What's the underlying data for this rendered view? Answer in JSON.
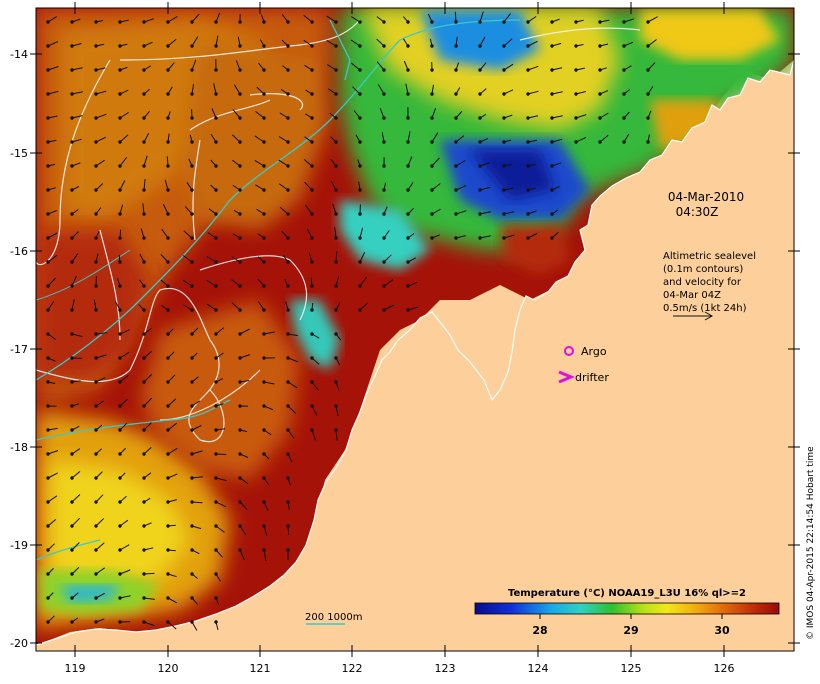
{
  "map": {
    "date_line": "04-Mar-2010",
    "time_line": "04:30Z",
    "legend_lines": [
      "Altimetric sealevel",
      "(0.1m contours)",
      "and velocity for",
      "04-Mar 04Z",
      "0.5m/s (1kt 24h)"
    ],
    "argo_label": "Argo",
    "drifter_label": "drifter",
    "depth_label": "200  1000m",
    "colorbar_title": "Temperature (°C) NOAA19_L3U 16% ql>=2",
    "colorbar_ticks": [
      "28",
      "29",
      "30"
    ],
    "credit": "© IMOS 04-Apr-2015 22:14:54 Hobart time",
    "lat_labels": [
      "-14",
      "-15",
      "-16",
      "-17",
      "-18",
      "-19",
      "-20"
    ],
    "lon_labels": [
      "119",
      "120",
      "121",
      "122",
      "123",
      "124",
      "125",
      "126"
    ],
    "colors": {
      "land": "#fccf9b",
      "sea_hot": "#a51208",
      "sea_warm": "#c4420a",
      "sea_mid": "#e2a10a",
      "sea_yellow": "#f2e01a",
      "sea_green": "#3cc43c",
      "sea_cyan": "#34d2c2",
      "sea_blue": "#1450d2",
      "sea_navy": "#0a1e9c",
      "contour_200": "#3ac9c9",
      "argo": "#e010e0",
      "drifter": "#e010e0"
    }
  }
}
